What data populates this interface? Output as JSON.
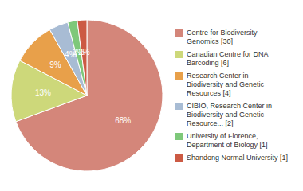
{
  "chart_data": {
    "type": "pie",
    "categories": [
      "Centre for Biodiversity\nGenomics [30]",
      "Canadian Centre for DNA\nBarcoding [6]",
      "Research Center in\nBiodiversity and Genetic\nResources [4]",
      "CIBIO, Research Center in\nBiodiversity and Genetic\nResource... [2]",
      "University of Florence,\nDepartment of Biology [1]",
      "Shandong Normal University [1]"
    ],
    "values": [
      68,
      13,
      9,
      4,
      2,
      2
    ],
    "value_labels": [
      "68%",
      "13%",
      "9%",
      "4%",
      "2%",
      "2%"
    ],
    "colors": [
      "#d4867a",
      "#cdd87a",
      "#e8a04a",
      "#a8bcd4",
      "#7ec87a",
      "#cc5a44"
    ],
    "legend": "right",
    "data_labels": true
  }
}
